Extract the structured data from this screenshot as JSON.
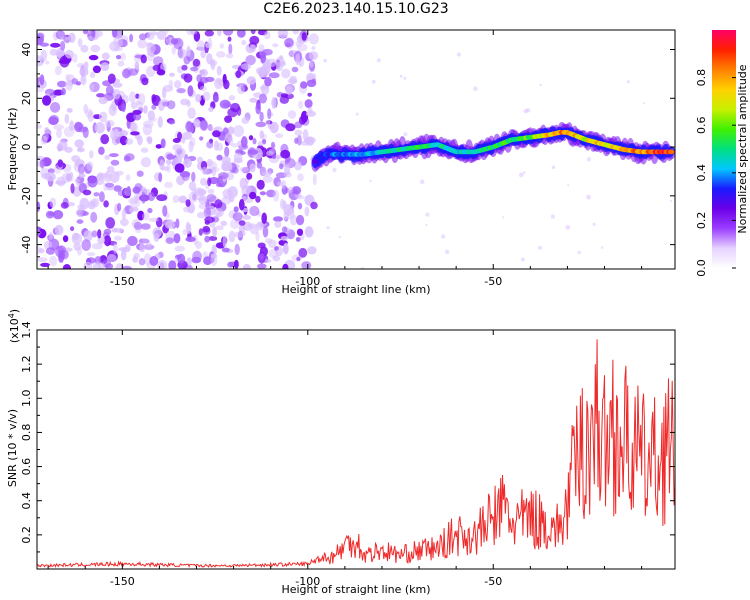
{
  "figure": {
    "title": "C2E6.2023.140.15.10.G23"
  },
  "chart_data": [
    {
      "type": "heatmap",
      "xlabel": "Height of straight line (km)",
      "ylabel": "Frequency (Hz)",
      "xlim": [
        -173,
        -1
      ],
      "ylim": [
        -50,
        48
      ],
      "x_ticks": [
        -150,
        -100,
        -50
      ],
      "y_ticks": [
        -40,
        -20,
        0,
        20,
        40
      ],
      "x_tick_labels": [
        "-150",
        "-100",
        "-50"
      ],
      "y_tick_labels": [
        "-40",
        "-20",
        "0",
        "20",
        "40"
      ],
      "grid": false,
      "colorbar": {
        "label": "Normalized spectral amplitude",
        "range": [
          0.0,
          1.0
        ],
        "ticks": [
          0.0,
          0.2,
          0.4,
          0.6,
          0.8
        ],
        "tick_labels": [
          "0.0",
          "0.2",
          "0.4",
          "0.6",
          "0.8"
        ],
        "colormap": [
          "#ffffff",
          "#e6d2ff",
          "#9b3dff",
          "#6a00e8",
          "#1a1aff",
          "#00c8ff",
          "#00e080",
          "#40f000",
          "#c8f000",
          "#ffd000",
          "#ff8000",
          "#ff2000",
          "#ff0066"
        ]
      },
      "noise_region_x": [
        -173,
        -98
      ],
      "signal_ridge": {
        "x": [
          -98,
          -95,
          -90,
          -85,
          -80,
          -75,
          -70,
          -65,
          -60,
          -55,
          -50,
          -45,
          -40,
          -35,
          -32,
          -30,
          -25,
          -20,
          -15,
          -10,
          -5,
          -2
        ],
        "frequency": [
          -6,
          -3,
          -3,
          -3,
          -2,
          -1,
          0,
          1,
          -2,
          -2,
          0,
          3,
          4,
          5,
          6,
          6,
          3,
          1,
          -1,
          -2,
          -2,
          -2
        ],
        "amplitude": [
          0.25,
          0.35,
          0.4,
          0.42,
          0.45,
          0.5,
          0.55,
          0.5,
          0.45,
          0.5,
          0.55,
          0.55,
          0.6,
          0.75,
          0.85,
          0.8,
          0.7,
          0.75,
          0.8,
          0.85,
          0.95,
          0.98
        ]
      }
    },
    {
      "type": "line",
      "xlabel": "Height of straight line (km)",
      "ylabel": "SNR (10 * v/v)",
      "y_scale_label": "(x10",
      "y_scale_exponent": "4",
      "y_scale_close": ")",
      "xlim": [
        -173,
        -1
      ],
      "ylim": [
        0,
        1.4
      ],
      "x_ticks": [
        -150,
        -100,
        -50
      ],
      "y_ticks": [
        0.2,
        0.4,
        0.6,
        0.8,
        1.0,
        1.2,
        1.4
      ],
      "x_tick_labels": [
        "-150",
        "-100",
        "-50"
      ],
      "y_tick_labels": [
        "0.2",
        "0.4",
        "0.6",
        "0.8",
        "1.0",
        "1.2",
        "1.4"
      ],
      "grid": false,
      "line_color": "#ee2a2a",
      "series": [
        {
          "x": [
            -173,
            -160,
            -150,
            -140,
            -130,
            -120,
            -110,
            -100,
            -95,
            -92,
            -90,
            -87,
            -85,
            -80,
            -75,
            -70,
            -65,
            -60,
            -55,
            -50,
            -47,
            -45,
            -40,
            -35,
            -32,
            -30,
            -28,
            -25,
            -22,
            -20,
            -18,
            -15,
            -12,
            -10,
            -8,
            -5,
            -3,
            -1
          ],
          "y": [
            0.02,
            0.025,
            0.03,
            0.025,
            0.02,
            0.02,
            0.025,
            0.03,
            0.08,
            0.14,
            0.2,
            0.26,
            0.12,
            0.16,
            0.12,
            0.16,
            0.18,
            0.3,
            0.28,
            0.45,
            0.55,
            0.4,
            0.45,
            0.38,
            0.35,
            0.55,
            0.9,
            1.1,
            1.3,
            1.05,
            1.25,
            1.1,
            1.05,
            0.95,
            0.9,
            0.95,
            1.1,
            0.95
          ]
        }
      ]
    }
  ]
}
